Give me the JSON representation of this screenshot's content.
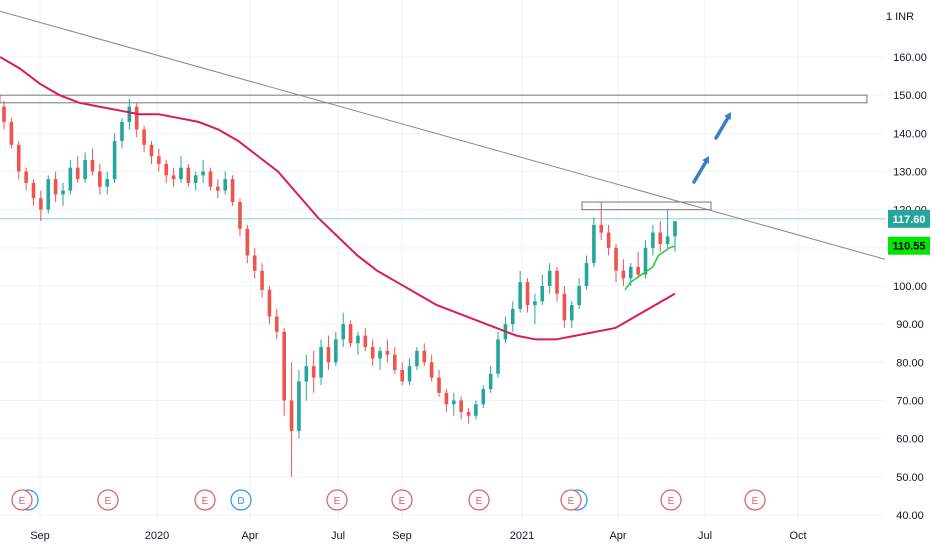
{
  "currency_label": "1 INR",
  "price_tags": {
    "last_price": "117.60",
    "ma_value": "110.55"
  },
  "colors": {
    "candle_up": "#26a69a",
    "candle_down": "#ef5350",
    "ma_long": "#d81b60",
    "ma_short": "#2ecc40",
    "trendline": "#888888",
    "arrow": "#3b7dc4",
    "event_earnings": "#e05a6a",
    "event_dividend": "#2196f3",
    "last_price_tag": "#26a69a",
    "ma_tag": "#00e600"
  },
  "events": [
    {
      "label": "E",
      "type": "earnings",
      "extra_ring": true
    },
    {
      "label": "E",
      "type": "earnings"
    },
    {
      "label": "E",
      "type": "earnings"
    },
    {
      "label": "D",
      "type": "dividend"
    },
    {
      "label": "E",
      "type": "earnings"
    },
    {
      "label": "E",
      "type": "earnings"
    },
    {
      "label": "E",
      "type": "earnings"
    },
    {
      "label": "E",
      "type": "earnings",
      "extra_ring": true
    },
    {
      "label": "E",
      "type": "earnings"
    },
    {
      "label": "E",
      "type": "earnings"
    }
  ],
  "chart_data": {
    "type": "candlestick",
    "y_axis": {
      "ticks": [
        "160.00",
        "150.00",
        "140.00",
        "130.00",
        "120.00",
        "110.00",
        "100.00",
        "90.00",
        "80.00",
        "70.00",
        "60.00",
        "50.00",
        "40.00"
      ],
      "range": [
        38,
        172
      ]
    },
    "x_axis": {
      "ticks": [
        "Sep",
        "2020",
        "Apr",
        "Jul",
        "Sep",
        "2021",
        "Apr",
        "Jul",
        "Oct"
      ]
    },
    "series": [
      {
        "name": "price",
        "kind": "ohlc",
        "points": [
          [
            147,
            148.5,
            141,
            143
          ],
          [
            143,
            144,
            136,
            137
          ],
          [
            137,
            138,
            128,
            130
          ],
          [
            130,
            131,
            125,
            127
          ],
          [
            127,
            128,
            121,
            123
          ],
          [
            123,
            125,
            117,
            120
          ],
          [
            120,
            129,
            119,
            128
          ],
          [
            128,
            130,
            122,
            124
          ],
          [
            124,
            127,
            121,
            125
          ],
          [
            125,
            133,
            124,
            131
          ],
          [
            131,
            134,
            127,
            128
          ],
          [
            128,
            135,
            127,
            133
          ],
          [
            133,
            136,
            129,
            130
          ],
          [
            130,
            132,
            124,
            126
          ],
          [
            126,
            130,
            124,
            128
          ],
          [
            128,
            140,
            127,
            138
          ],
          [
            138,
            144,
            136,
            143
          ],
          [
            143,
            149,
            141,
            147
          ],
          [
            147,
            148,
            139,
            141
          ],
          [
            141,
            142,
            135,
            137
          ],
          [
            137,
            138,
            132,
            134
          ],
          [
            134,
            136,
            130,
            132
          ],
          [
            132,
            133,
            127,
            129
          ],
          [
            129,
            131,
            126,
            128
          ],
          [
            128,
            134,
            127,
            131
          ],
          [
            131,
            132,
            126,
            127
          ],
          [
            127,
            130,
            125,
            129
          ],
          [
            129,
            133,
            127,
            130
          ],
          [
            130,
            131,
            125,
            126
          ],
          [
            126,
            128,
            123,
            125
          ],
          [
            125,
            130,
            124,
            128
          ],
          [
            128,
            129,
            121,
            122
          ],
          [
            122,
            123,
            113,
            115
          ],
          [
            115,
            116,
            106,
            108
          ],
          [
            108,
            110,
            102,
            104
          ],
          [
            104,
            106,
            97,
            99
          ],
          [
            99,
            100,
            90,
            92
          ],
          [
            92,
            94,
            86,
            88
          ],
          [
            88,
            89,
            66,
            70
          ],
          [
            70,
            80,
            50,
            62
          ],
          [
            62,
            78,
            60,
            75
          ],
          [
            75,
            82,
            70,
            79
          ],
          [
            79,
            83,
            72,
            76
          ],
          [
            76,
            86,
            74,
            84
          ],
          [
            84,
            87,
            78,
            80
          ],
          [
            80,
            88,
            79,
            86
          ],
          [
            86,
            93,
            84,
            90
          ],
          [
            90,
            91,
            84,
            85
          ],
          [
            85,
            88,
            82,
            87
          ],
          [
            87,
            89,
            83,
            84
          ],
          [
            84,
            86,
            79,
            81
          ],
          [
            81,
            84,
            78,
            83
          ],
          [
            83,
            86,
            80,
            82
          ],
          [
            82,
            84,
            77,
            78
          ],
          [
            78,
            80,
            74,
            75
          ],
          [
            75,
            81,
            74,
            79
          ],
          [
            79,
            84,
            78,
            83
          ],
          [
            83,
            85,
            79,
            80
          ],
          [
            80,
            82,
            75,
            76
          ],
          [
            76,
            78,
            71,
            72
          ],
          [
            72,
            73,
            67,
            69
          ],
          [
            69,
            72,
            66,
            70
          ],
          [
            70,
            71,
            65,
            67
          ],
          [
            67,
            68,
            64,
            66
          ],
          [
            66,
            70,
            65,
            69
          ],
          [
            69,
            74,
            68,
            73
          ],
          [
            73,
            79,
            72,
            77
          ],
          [
            77,
            88,
            76,
            86
          ],
          [
            86,
            92,
            85,
            90
          ],
          [
            90,
            96,
            88,
            94
          ],
          [
            94,
            104,
            93,
            101
          ],
          [
            101,
            102,
            93,
            95
          ],
          [
            95,
            98,
            90,
            96
          ],
          [
            96,
            103,
            95,
            100
          ],
          [
            100,
            106,
            98,
            104
          ],
          [
            104,
            105,
            96,
            98
          ],
          [
            98,
            100,
            89,
            91
          ],
          [
            91,
            96,
            89,
            95
          ],
          [
            95,
            102,
            94,
            100
          ],
          [
            100,
            108,
            99,
            106
          ],
          [
            106,
            118,
            105,
            116
          ],
          [
            116,
            122,
            112,
            114
          ],
          [
            114,
            116,
            108,
            110
          ],
          [
            110,
            111,
            101,
            104
          ],
          [
            104,
            107,
            100,
            102
          ],
          [
            102,
            106,
            100,
            105
          ],
          [
            105,
            109,
            102,
            103
          ],
          [
            103,
            112,
            102,
            110
          ],
          [
            110,
            116,
            108,
            114
          ],
          [
            114,
            117,
            109,
            111
          ],
          [
            111,
            120,
            110,
            113
          ],
          [
            113,
            116,
            109,
            117
          ]
        ]
      },
      {
        "name": "long moving average",
        "kind": "line",
        "values": [
          160,
          157,
          153,
          150,
          148,
          147,
          146,
          145,
          145,
          144,
          143,
          141,
          138,
          134,
          130,
          124,
          118,
          113,
          108,
          104,
          101,
          98,
          95,
          93,
          91,
          89,
          87,
          86,
          86,
          87,
          88,
          89,
          92,
          95,
          98
        ]
      },
      {
        "name": "short moving average",
        "kind": "line",
        "values": [
          99,
          101,
          102,
          103,
          104,
          105,
          108,
          109,
          110,
          110.5
        ]
      }
    ],
    "horizontal_lines": [
      117.6
    ],
    "resistance_zones": [
      [
        148,
        150
      ],
      [
        120,
        122
      ]
    ],
    "trendline": {
      "start_value": 172,
      "end_value": 107
    },
    "annotations": [
      "arrow up",
      "arrow up"
    ]
  }
}
